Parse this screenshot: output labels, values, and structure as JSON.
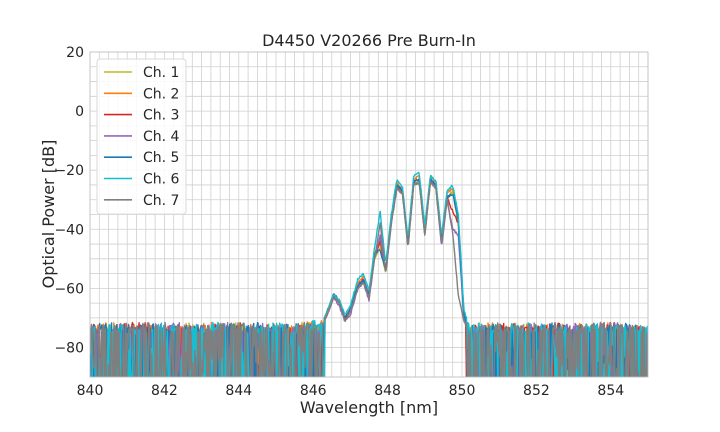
{
  "chart_data": {
    "type": "line",
    "title": "D4450 V20266 Pre Burn-In",
    "xlabel": "Wavelength [nm]",
    "ylabel": "Optical Power [dB]",
    "xlim": [
      840,
      855
    ],
    "ylim": [
      -90,
      20
    ],
    "xticks": [
      840,
      842,
      844,
      846,
      848,
      850,
      852,
      854
    ],
    "xtick_labels": [
      "840",
      "842",
      "844",
      "846",
      "848",
      "850",
      "852",
      "854"
    ],
    "yticks": [
      -80,
      -60,
      -40,
      -20,
      0,
      20
    ],
    "ytick_labels": [
      "−80",
      "−60",
      "−40",
      "−20",
      "0",
      "20"
    ],
    "grid": true,
    "legend_position": "top-left",
    "noise_floor_db": -90,
    "x": [
      840.0,
      840.5,
      841.0,
      841.5,
      842.0,
      842.5,
      843.0,
      843.5,
      844.0,
      844.5,
      845.0,
      845.5,
      846.0,
      846.2,
      846.4,
      846.55,
      846.7,
      846.85,
      847.0,
      847.2,
      847.35,
      847.5,
      847.65,
      847.8,
      847.95,
      848.1,
      848.25,
      848.4,
      848.55,
      848.7,
      848.85,
      849.0,
      849.15,
      849.3,
      849.45,
      849.6,
      849.75,
      849.9,
      850.05,
      850.2,
      850.5,
      851.0,
      851.5,
      852.0,
      852.5,
      853.0,
      853.5,
      854.0,
      854.5,
      855.0
    ],
    "series": [
      {
        "name": "Ch. 1",
        "color": "#bcbd22",
        "values": [
          -74,
          -73,
          -74,
          -73,
          -74,
          -73,
          -73,
          -74,
          -73,
          -74,
          -73,
          -73,
          -72,
          -74,
          -68,
          -63,
          -65,
          -71,
          -68,
          -60,
          -58,
          -64,
          -50,
          -46,
          -55,
          -38,
          -26,
          -28,
          -46,
          -25,
          -24,
          -42,
          -24,
          -26,
          -45,
          -30,
          -27,
          -38,
          -70,
          -75,
          -74,
          -74,
          -73,
          -74,
          -73,
          -74,
          -73,
          -74,
          -74,
          -74
        ]
      },
      {
        "name": "Ch. 2",
        "color": "#ff7f0e",
        "values": [
          -74,
          -73,
          -73,
          -74,
          -73,
          -74,
          -73,
          -73,
          -74,
          -73,
          -74,
          -73,
          -72,
          -73,
          -67,
          -62,
          -64,
          -70,
          -67,
          -58,
          -56,
          -63,
          -48,
          -45,
          -53,
          -36,
          -24,
          -27,
          -44,
          -23,
          -22,
          -40,
          -22,
          -24,
          -43,
          -28,
          -26,
          -36,
          -68,
          -74,
          -73,
          -73,
          -74,
          -73,
          -74,
          -73,
          -74,
          -73,
          -74,
          -74
        ]
      },
      {
        "name": "Ch. 3",
        "color": "#d62728",
        "values": [
          -73,
          -74,
          -73,
          -73,
          -74,
          -73,
          -74,
          -73,
          -73,
          -74,
          -73,
          -74,
          -73,
          -74,
          -68,
          -63,
          -65,
          -70,
          -68,
          -59,
          -57,
          -63,
          -49,
          -44,
          -54,
          -37,
          -25,
          -27,
          -45,
          -24,
          -23,
          -41,
          -23,
          -25,
          -44,
          -29,
          -34,
          -38,
          -69,
          -74,
          -74,
          -73,
          -73,
          -74,
          -73,
          -74,
          -73,
          -73,
          -74,
          -74
        ]
      },
      {
        "name": "Ch. 4",
        "color": "#9467bd",
        "values": [
          -74,
          -74,
          -73,
          -74,
          -73,
          -73,
          -74,
          -73,
          -74,
          -73,
          -73,
          -74,
          -72,
          -74,
          -68,
          -63,
          -66,
          -71,
          -69,
          -60,
          -58,
          -64,
          -50,
          -42,
          -55,
          -38,
          -26,
          -28,
          -46,
          -25,
          -24,
          -42,
          -24,
          -26,
          -46,
          -30,
          -40,
          -42,
          -70,
          -75,
          -73,
          -74,
          -74,
          -73,
          -74,
          -73,
          -74,
          -73,
          -73,
          -74
        ]
      },
      {
        "name": "Ch. 5",
        "color": "#1f77b4",
        "values": [
          -73,
          -73,
          -74,
          -73,
          -74,
          -74,
          -73,
          -74,
          -73,
          -73,
          -74,
          -73,
          -73,
          -74,
          -67,
          -62,
          -64,
          -70,
          -67,
          -59,
          -57,
          -62,
          -48,
          -47,
          -54,
          -37,
          -25,
          -27,
          -45,
          -24,
          -23,
          -41,
          -23,
          -25,
          -44,
          -29,
          -28,
          -37,
          -69,
          -74,
          -74,
          -73,
          -74,
          -74,
          -73,
          -74,
          -73,
          -74,
          -73,
          -74
        ]
      },
      {
        "name": "Ch. 6",
        "color": "#17becf",
        "values": [
          -74,
          -73,
          -74,
          -74,
          -73,
          -74,
          -73,
          -73,
          -74,
          -74,
          -73,
          -74,
          -72,
          -73,
          -67,
          -62,
          -64,
          -69,
          -66,
          -57,
          -55,
          -61,
          -46,
          -34,
          -52,
          -35,
          -23,
          -26,
          -43,
          -22,
          -21,
          -39,
          -22,
          -24,
          -42,
          -27,
          -25,
          -35,
          -67,
          -74,
          -73,
          -74,
          -73,
          -73,
          -74,
          -74,
          -73,
          -74,
          -74,
          -74
        ]
      },
      {
        "name": "Ch. 7",
        "color": "#7f7f7f",
        "values": [
          -73,
          -74,
          -74,
          -73,
          -73,
          -74,
          -74,
          -73,
          -73,
          -74,
          -74,
          -73,
          -73,
          -74,
          -68,
          -63,
          -65,
          -71,
          -68,
          -60,
          -58,
          -63,
          -50,
          -38,
          -55,
          -38,
          -26,
          -28,
          -46,
          -25,
          -24,
          -42,
          -24,
          -26,
          -45,
          -30,
          -41,
          -62,
          -71,
          -75,
          -74,
          -73,
          -74,
          -73,
          -74,
          -74,
          -73,
          -73,
          -74,
          -74
        ]
      }
    ]
  }
}
